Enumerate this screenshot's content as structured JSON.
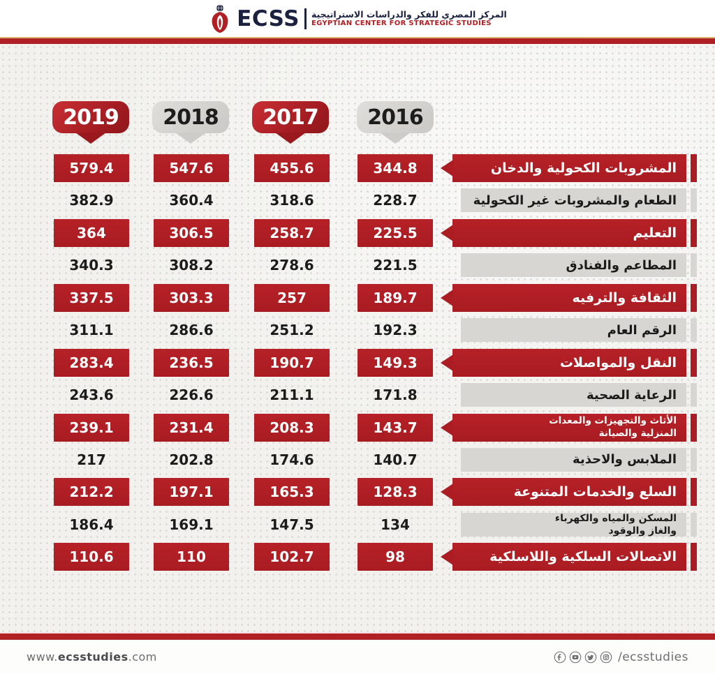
{
  "header": {
    "logo_text": "ECSS",
    "org_name_ar": "المركز المصري للفكر والدراسات الاستراتيجية",
    "org_name_en": "EGYPTIAN CENTER FOR STRATEGIC STUDIES"
  },
  "years": [
    {
      "label": "2019",
      "style": "red"
    },
    {
      "label": "2018",
      "style": "gray"
    },
    {
      "label": "2017",
      "style": "red"
    },
    {
      "label": "2016",
      "style": "gray"
    }
  ],
  "rows": [
    {
      "label": "المشروبات الكحولية والدخان",
      "style": "red",
      "values": [
        "579.4",
        "547.6",
        "455.6",
        "344.8"
      ]
    },
    {
      "label": "الطعام والمشروبات غير الكحولية",
      "style": "plain",
      "values": [
        "382.9",
        "360.4",
        "318.6",
        "228.7"
      ]
    },
    {
      "label": "التعليم",
      "style": "red",
      "values": [
        "364",
        "306.5",
        "258.7",
        "225.5"
      ]
    },
    {
      "label": "المطاعم والفنادق",
      "style": "plain",
      "values": [
        "340.3",
        "308.2",
        "278.6",
        "221.5"
      ]
    },
    {
      "label": "الثقافة والترفيه",
      "style": "red",
      "values": [
        "337.5",
        "303.3",
        "257",
        "189.7"
      ]
    },
    {
      "label": "الرقم العام",
      "style": "plain",
      "values": [
        "311.1",
        "286.6",
        "251.2",
        "192.3"
      ]
    },
    {
      "label": "النقل والمواصلات",
      "style": "red",
      "values": [
        "283.4",
        "236.5",
        "190.7",
        "149.3"
      ]
    },
    {
      "label": "الرعاية الصحية",
      "style": "plain",
      "values": [
        "243.6",
        "226.6",
        "211.1",
        "171.8"
      ]
    },
    {
      "label": "الأثاث والتجهيزات والمعدات المنزلية والصيانة",
      "label_lines": [
        "الأثاث والتجهيزات والمعدات",
        "المنزلية والصيانة"
      ],
      "style": "red",
      "values": [
        "239.1",
        "231.4",
        "208.3",
        "143.7"
      ]
    },
    {
      "label": "الملابس والاحذية",
      "style": "plain",
      "values": [
        "217",
        "202.8",
        "174.6",
        "140.7"
      ]
    },
    {
      "label": "السلع والخدمات المتنوعة",
      "style": "red",
      "values": [
        "212.2",
        "197.1",
        "165.3",
        "128.3"
      ]
    },
    {
      "label": "المسكن والمياه والكهرباء والغاز والوقود",
      "label_lines": [
        "المسكن والمياه والكهرباء",
        "والغاز والوقود"
      ],
      "style": "plain",
      "values": [
        "186.4",
        "169.1",
        "147.5",
        "134"
      ]
    },
    {
      "label": "الاتصالات السلكية واللاسلكية",
      "style": "red",
      "values": [
        "110.6",
        "110",
        "102.7",
        "98"
      ]
    }
  ],
  "footer": {
    "website_prefix": "www.",
    "website_bold": "ecsstudies",
    "website_suffix": ".com",
    "social_handle": "/ecsstudies",
    "icons": [
      "facebook-icon",
      "youtube-icon",
      "twitter-icon",
      "instagram-icon"
    ]
  },
  "colors": {
    "accent_red": "#B01F24",
    "badge_gray": "#D6D4D1",
    "navy": "#1C2140",
    "background": "#F2F1EE",
    "gold_rule": "#D9B570"
  },
  "chart_data": {
    "type": "table",
    "title": "",
    "legend_position": "top",
    "categories": [
      "المشروبات الكحولية والدخان",
      "الطعام والمشروبات غير الكحولية",
      "التعليم",
      "المطاعم والفنادق",
      "الثقافة والترفيه",
      "الرقم العام",
      "النقل والمواصلات",
      "الرعاية الصحية",
      "الأثاث والتجهيزات والمعدات المنزلية والصيانة",
      "الملابس والاحذية",
      "السلع والخدمات المتنوعة",
      "المسكن والمياه والكهرباء والغاز والوقود",
      "الاتصالات السلكية واللاسلكية"
    ],
    "series": [
      {
        "name": "2019",
        "values": [
          579.4,
          382.9,
          364,
          340.3,
          337.5,
          311.1,
          283.4,
          243.6,
          239.1,
          217,
          212.2,
          186.4,
          110.6
        ]
      },
      {
        "name": "2018",
        "values": [
          547.6,
          360.4,
          306.5,
          308.2,
          303.3,
          286.6,
          236.5,
          226.6,
          231.4,
          202.8,
          197.1,
          169.1,
          110
        ]
      },
      {
        "name": "2017",
        "values": [
          455.6,
          318.6,
          258.7,
          278.6,
          257,
          251.2,
          190.7,
          211.1,
          208.3,
          174.6,
          165.3,
          147.5,
          102.7
        ]
      },
      {
        "name": "2016",
        "values": [
          344.8,
          228.7,
          225.5,
          221.5,
          189.7,
          192.3,
          149.3,
          171.8,
          143.7,
          140.7,
          128.3,
          134,
          98
        ]
      }
    ]
  }
}
